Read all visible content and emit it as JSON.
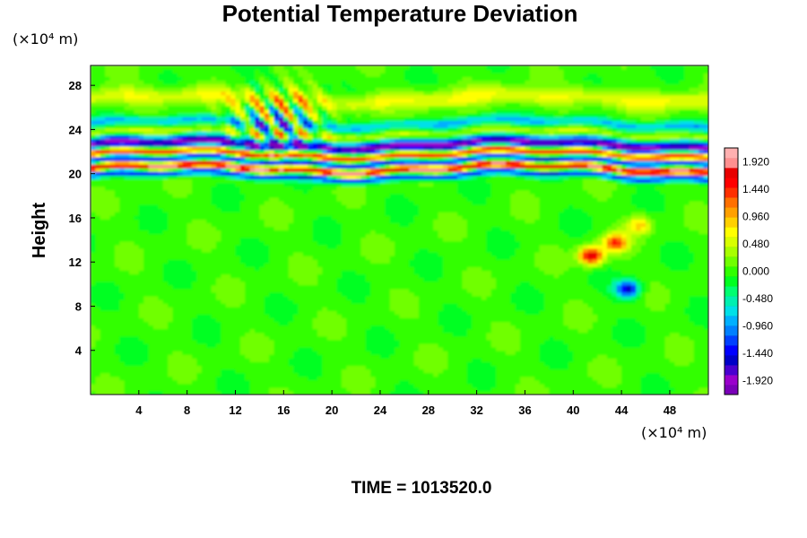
{
  "chart_data": {
    "type": "heatmap",
    "title": "Potential Temperature Deviation",
    "ylabel": "Height",
    "x_unit": "(×10⁴ m)",
    "y_unit": "(×10⁴ m)",
    "xlim": [
      0,
      51.2
    ],
    "ylim": [
      0,
      29.8
    ],
    "x_ticks": [
      4,
      8,
      12,
      16,
      20,
      24,
      28,
      32,
      36,
      40,
      44,
      48
    ],
    "y_ticks": [
      4,
      8,
      12,
      16,
      20,
      24,
      28
    ],
    "colorbar": {
      "min": -2.16,
      "max": 2.16,
      "tick_values": [
        1.92,
        1.44,
        0.96,
        0.48,
        0.0,
        -0.48,
        -0.96,
        -1.44,
        -1.92
      ],
      "tick_labels": [
        "1.920",
        "1.440",
        "0.960",
        "0.480",
        "0.000",
        "-0.480",
        "-0.960",
        "-1.440",
        "-1.920"
      ],
      "colors": [
        "#7a00b8",
        "#9a00cc",
        "#4a00d0",
        "#0000c8",
        "#0000ff",
        "#0040ff",
        "#0080ff",
        "#00b0ff",
        "#00e0e8",
        "#00f0b0",
        "#00ff70",
        "#00ff20",
        "#30ff00",
        "#70ff00",
        "#a8ff00",
        "#d8ff00",
        "#ffff00",
        "#ffd000",
        "#ffa000",
        "#ff7000",
        "#ff3000",
        "#ff0000",
        "#e80000",
        "#ff9090",
        "#ffb0b0"
      ]
    },
    "field_features": [
      {
        "kind": "band",
        "y_center": 22.6,
        "thickness": 0.9,
        "value": -2.0
      },
      {
        "kind": "band",
        "y_center": 21.8,
        "thickness": 0.7,
        "value": 2.0
      },
      {
        "kind": "band",
        "y_center": 21.2,
        "thickness": 0.6,
        "value": -2.0
      },
      {
        "kind": "band",
        "y_center": 20.5,
        "thickness": 0.7,
        "value": 2.0
      },
      {
        "kind": "band",
        "y_center": 19.9,
        "thickness": 0.5,
        "value": -1.7
      },
      {
        "kind": "band",
        "y_center": 23.6,
        "thickness": 0.5,
        "value": 0.5
      },
      {
        "kind": "band",
        "y_center": 24.6,
        "thickness": 0.6,
        "value": -0.8
      },
      {
        "kind": "band",
        "y_center": 26.8,
        "thickness": 1.2,
        "value": 0.6
      },
      {
        "kind": "wave_packet",
        "x_range": [
          12,
          19
        ],
        "y_range": [
          22,
          27.5
        ],
        "value": 1.5
      },
      {
        "kind": "blob",
        "x": 41.5,
        "y": 12.6,
        "value": 1.9
      },
      {
        "kind": "blob",
        "x": 43.5,
        "y": 13.8,
        "value": 1.4
      },
      {
        "kind": "blob",
        "x": 45.5,
        "y": 15.4,
        "value": 0.9
      },
      {
        "kind": "blob",
        "x": 44.5,
        "y": 9.6,
        "value": -1.6
      }
    ]
  },
  "time_label": "TIME = 1013520.0"
}
